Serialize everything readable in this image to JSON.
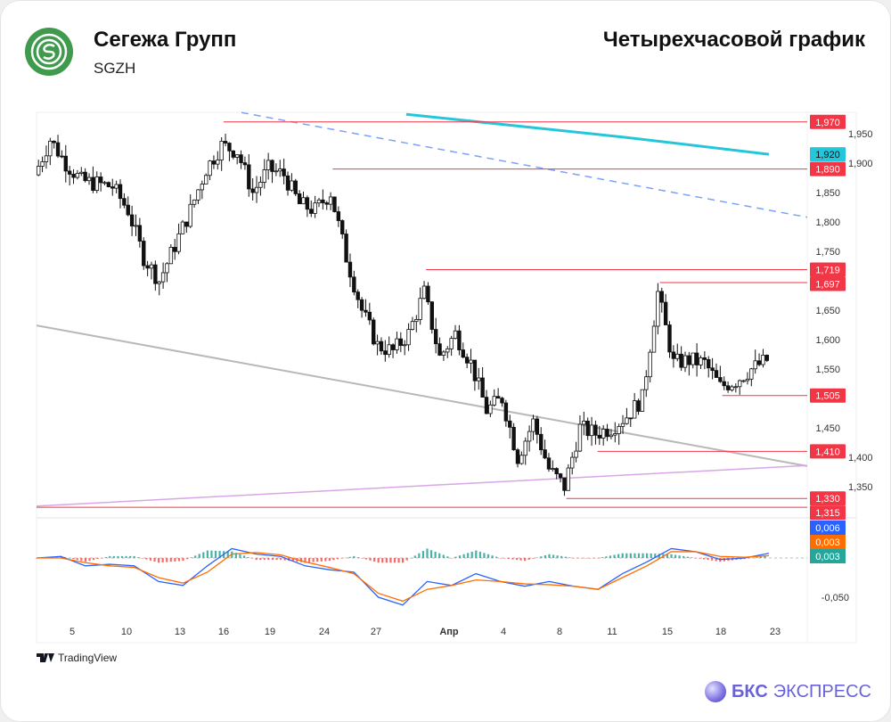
{
  "header": {
    "company": "Сегежа Групп",
    "ticker": "SGZH",
    "chart_title": "Четырехчасовой график"
  },
  "footer": {
    "tradingview": "TradingView",
    "brand_bold": "БКС",
    "brand_rest": "ЭКСПРЕСС"
  },
  "chart_data": {
    "type": "candlestick",
    "price_axis": {
      "ticks": [
        "1,950",
        "1,900",
        "1,850",
        "1,800",
        "1,750",
        "1,650",
        "1,600",
        "1,550",
        "1,450",
        "1,400",
        "1,350"
      ],
      "tick_values": [
        1950,
        1900,
        1850,
        1800,
        1750,
        1650,
        1600,
        1550,
        1450,
        1400,
        1350
      ]
    },
    "x_ticks": [
      "5",
      "10",
      "13",
      "16",
      "19",
      "24",
      "27",
      "Апр",
      "4",
      "8",
      "11",
      "15",
      "18",
      "23"
    ],
    "price_path": [
      1880,
      1940,
      1900,
      1870,
      1865,
      1860,
      1820,
      1740,
      1700,
      1760,
      1820,
      1890,
      1930,
      1920,
      1850,
      1890,
      1880,
      1830,
      1820,
      1850,
      1740,
      1650,
      1590,
      1580,
      1610,
      1680,
      1570,
      1610,
      1560,
      1480,
      1500,
      1400,
      1460,
      1380,
      1350,
      1450,
      1440,
      1450,
      1470,
      1500,
      1680,
      1560,
      1565,
      1560,
      1520,
      1530,
      1550,
      1565
    ],
    "levels": [
      {
        "label": "1,970",
        "value": 1970,
        "from_index": 12
      },
      {
        "label": "1,890",
        "value": 1890,
        "from_index": 19
      },
      {
        "label": "1,719",
        "value": 1719,
        "from_index": 25
      },
      {
        "label": "1,697",
        "value": 1697,
        "from_index": 40
      },
      {
        "label": "1,505",
        "value": 1505,
        "from_index": 44
      },
      {
        "label": "1,410",
        "value": 1410,
        "from_index": 36
      },
      {
        "label": "1,330",
        "value": 1330,
        "from_index": 34
      },
      {
        "label": "1,315",
        "value": 1315,
        "from_index": 0
      }
    ],
    "moving_average": {
      "label": "1,920",
      "values": [
        1983,
        1944,
        1915
      ],
      "color": "#26c6da"
    },
    "dashed_trendline": {
      "start": 1986,
      "end": 1808,
      "color": "#7aa2f7"
    },
    "grey_trendline": {
      "start": 1624,
      "end": 1385,
      "color": "#b8b8b8"
    },
    "purple_trendline": {
      "start": 1317,
      "end": 1386,
      "color": "#d9a6e6"
    },
    "macd": {
      "axis_tick": "-0,050",
      "tick_value": -0.05,
      "macd_label": "0,006",
      "signal_label": "0,003",
      "hist_label": "0,003",
      "macd_color": "#2962ff",
      "signal_color": "#ff6d00",
      "hist_color": "#26a69a",
      "neg_color": "#ef5350",
      "macd_values": [
        0,
        0.002,
        -0.01,
        -0.008,
        -0.01,
        -0.03,
        -0.035,
        -0.01,
        0.012,
        0.005,
        0.002,
        -0.01,
        -0.015,
        -0.018,
        -0.05,
        -0.06,
        -0.03,
        -0.035,
        -0.02,
        -0.03,
        -0.036,
        -0.03,
        -0.036,
        -0.04,
        -0.02,
        -0.005,
        0.012,
        0.008,
        -0.002,
        0,
        0.006
      ],
      "signal_values": [
        0,
        0,
        -0.006,
        -0.01,
        -0.012,
        -0.025,
        -0.032,
        -0.018,
        0.005,
        0.007,
        0.004,
        -0.005,
        -0.012,
        -0.02,
        -0.045,
        -0.055,
        -0.04,
        -0.035,
        -0.028,
        -0.03,
        -0.033,
        -0.034,
        -0.036,
        -0.04,
        -0.025,
        -0.01,
        0.008,
        0.008,
        0.002,
        0.001,
        0.003
      ]
    }
  }
}
